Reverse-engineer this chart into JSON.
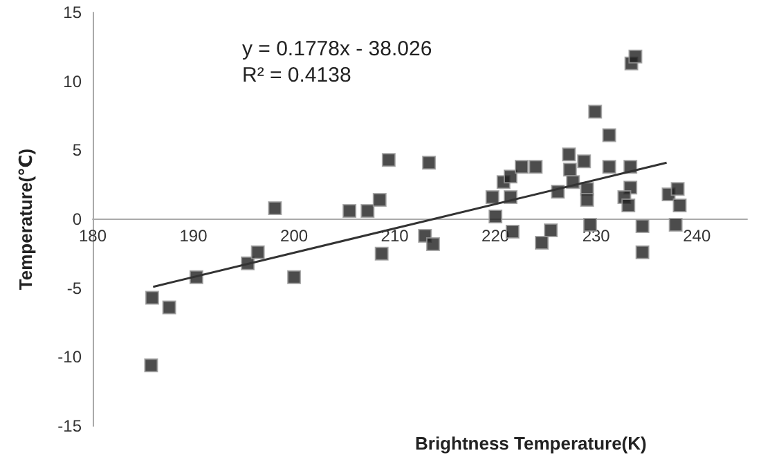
{
  "chart_data": {
    "type": "scatter",
    "xlabel": "Brightness Temperature(K)",
    "ylabel": "Temperature(℃)",
    "annotations": [
      "y = 0.1778x - 38.026",
      "R² = 0.4138"
    ],
    "xlim": [
      180,
      245
    ],
    "xticks": [
      180,
      190,
      200,
      210,
      220,
      230,
      240
    ],
    "ylim": [
      -15,
      15
    ],
    "yticks": [
      -15,
      -10,
      -5,
      0,
      5,
      10,
      15
    ],
    "grid": false,
    "marker": "square",
    "series": [
      {
        "type": "scatter",
        "color": "#1f1f1f",
        "x": [
          185.9,
          185.8,
          187.6,
          190.3,
          195.4,
          196.4,
          198.1,
          200,
          205.5,
          207.3,
          208.5,
          208.7,
          209.4,
          213,
          213.8,
          213.4,
          219.7,
          220,
          220.8,
          221.5,
          221.5,
          222.6,
          224,
          226.2,
          227.3,
          227.4,
          227.7,
          228.8,
          229.1,
          229.1,
          229.9,
          231.3,
          231.3,
          233.4,
          233.4,
          232.8,
          233.2,
          233.5,
          233.9,
          237.2,
          238.1,
          238.3,
          221.7,
          224.6,
          225.5,
          229.4,
          234.6,
          234.6,
          237.9
        ],
        "values": [
          -5.7,
          -10.6,
          -6.4,
          -4.2,
          -3.2,
          -2.4,
          0.8,
          -4.2,
          0.6,
          0.6,
          1.4,
          -2.5,
          4.3,
          -1.2,
          -1.8,
          4.1,
          1.6,
          0.2,
          2.7,
          3.1,
          1.6,
          3.8,
          3.8,
          2.0,
          4.7,
          3.6,
          2.7,
          4.2,
          2.2,
          1.4,
          7.8,
          6.1,
          3.8,
          3.8,
          2.3,
          1.6,
          1.0,
          11.3,
          11.8,
          1.8,
          2.2,
          1.0,
          -0.9,
          -1.7,
          -0.8,
          -0.4,
          -0.5,
          -2.4,
          -0.4
        ]
      },
      {
        "type": "line",
        "color": "#333333",
        "marker": "none",
        "x": [
          186,
          237
        ],
        "values": [
          -4.9,
          4.1
        ]
      }
    ]
  }
}
